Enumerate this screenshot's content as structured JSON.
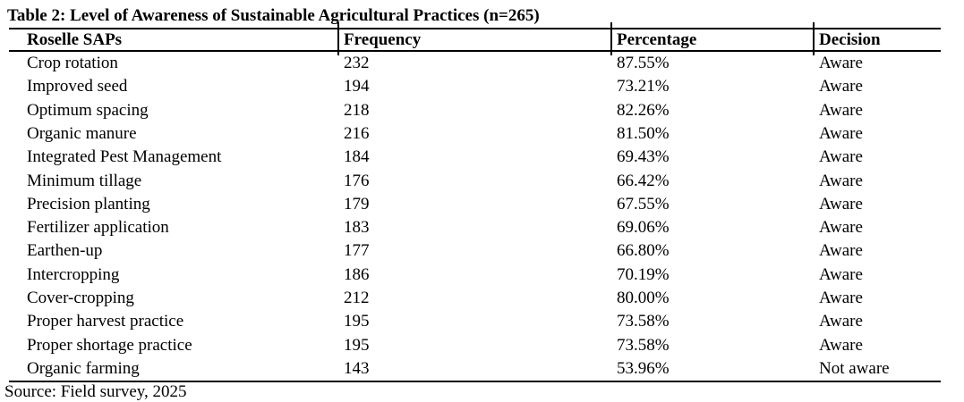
{
  "table": {
    "title": "Table 2: Level of Awareness of Sustainable Agricultural Practices (n=265)",
    "columns": [
      "Roselle SAPs",
      "Frequency",
      "Percentage",
      "Decision"
    ],
    "rows": [
      {
        "practice": "Crop rotation",
        "frequency": "232",
        "percentage": "87.55%",
        "decision": "Aware"
      },
      {
        "practice": "Improved seed",
        "frequency": "194",
        "percentage": "73.21%",
        "decision": "Aware"
      },
      {
        "practice": "Optimum spacing",
        "frequency": "218",
        "percentage": "82.26%",
        "decision": "Aware"
      },
      {
        "practice": "Organic manure",
        "frequency": "216",
        "percentage": "81.50%",
        "decision": "Aware"
      },
      {
        "practice": "Integrated Pest Management",
        "frequency": "184",
        "percentage": "69.43%",
        "decision": "Aware"
      },
      {
        "practice": "Minimum tillage",
        "frequency": "176",
        "percentage": "66.42%",
        "decision": "Aware"
      },
      {
        "practice": "Precision planting",
        "frequency": "179",
        "percentage": "67.55%",
        "decision": "Aware"
      },
      {
        "practice": "Fertilizer application",
        "frequency": "183",
        "percentage": "69.06%",
        "decision": "Aware"
      },
      {
        "practice": "Earthen-up",
        "frequency": "177",
        "percentage": "66.80%",
        "decision": "Aware"
      },
      {
        "practice": "Intercropping",
        "frequency": "186",
        "percentage": "70.19%",
        "decision": "Aware"
      },
      {
        "practice": "Cover-cropping",
        "frequency": "212",
        "percentage": "80.00%",
        "decision": "Aware"
      },
      {
        "practice": "Proper harvest practice",
        "frequency": "195",
        "percentage": "73.58%",
        "decision": "Aware"
      },
      {
        "practice": "Proper shortage practice",
        "frequency": "195",
        "percentage": "73.58%",
        "decision": "Aware"
      },
      {
        "practice": "Organic farming",
        "frequency": "143",
        "percentage": "53.96%",
        "decision": "Not aware"
      }
    ],
    "source": "Source: Field survey, 2025"
  }
}
